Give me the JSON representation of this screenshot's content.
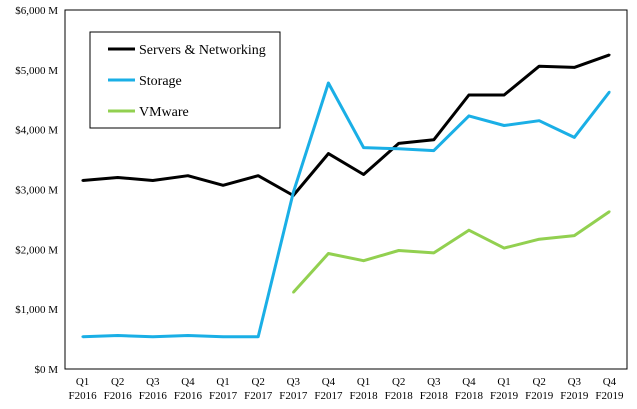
{
  "chart_data": {
    "type": "line",
    "categories": [
      [
        "Q1",
        "F2016"
      ],
      [
        "Q2",
        "F2016"
      ],
      [
        "Q3",
        "F2016"
      ],
      [
        "Q4",
        "F2016"
      ],
      [
        "Q1",
        "F2017"
      ],
      [
        "Q2",
        "F2017"
      ],
      [
        "Q3",
        "F2017"
      ],
      [
        "Q4",
        "F2017"
      ],
      [
        "Q1",
        "F2018"
      ],
      [
        "Q2",
        "F2018"
      ],
      [
        "Q3",
        "F2018"
      ],
      [
        "Q4",
        "F2018"
      ],
      [
        "Q1",
        "F2019"
      ],
      [
        "Q2",
        "F2019"
      ],
      [
        "Q3",
        "F2019"
      ],
      [
        "Q4",
        "F2019"
      ]
    ],
    "y_ticks": [
      0,
      1000,
      2000,
      3000,
      4000,
      5000,
      6000
    ],
    "y_tick_labels": [
      "$0 M",
      "$1,000 M",
      "$2,000 M",
      "$3,000 M",
      "$4,000 M",
      "$5,000 M",
      "$6,000 M"
    ],
    "ylim": [
      0,
      6000
    ],
    "grid": false,
    "legend_position": "top-left",
    "series": [
      {
        "name": "Servers & Networking",
        "color": "#000000",
        "values": [
          3150,
          3200,
          3150,
          3230,
          3070,
          3230,
          2900,
          3600,
          3250,
          3770,
          3830,
          4580,
          4580,
          5060,
          5040,
          5250
        ]
      },
      {
        "name": "Storage",
        "color": "#1aafe6",
        "values": [
          540,
          560,
          540,
          560,
          540,
          540,
          2950,
          4780,
          3700,
          3680,
          3650,
          4230,
          4070,
          4150,
          3870,
          4630
        ]
      },
      {
        "name": "VMware",
        "color": "#92d050",
        "values": [
          null,
          null,
          null,
          null,
          null,
          null,
          1280,
          1930,
          1810,
          1980,
          1940,
          2320,
          2020,
          2170,
          2230,
          2630
        ]
      }
    ]
  }
}
